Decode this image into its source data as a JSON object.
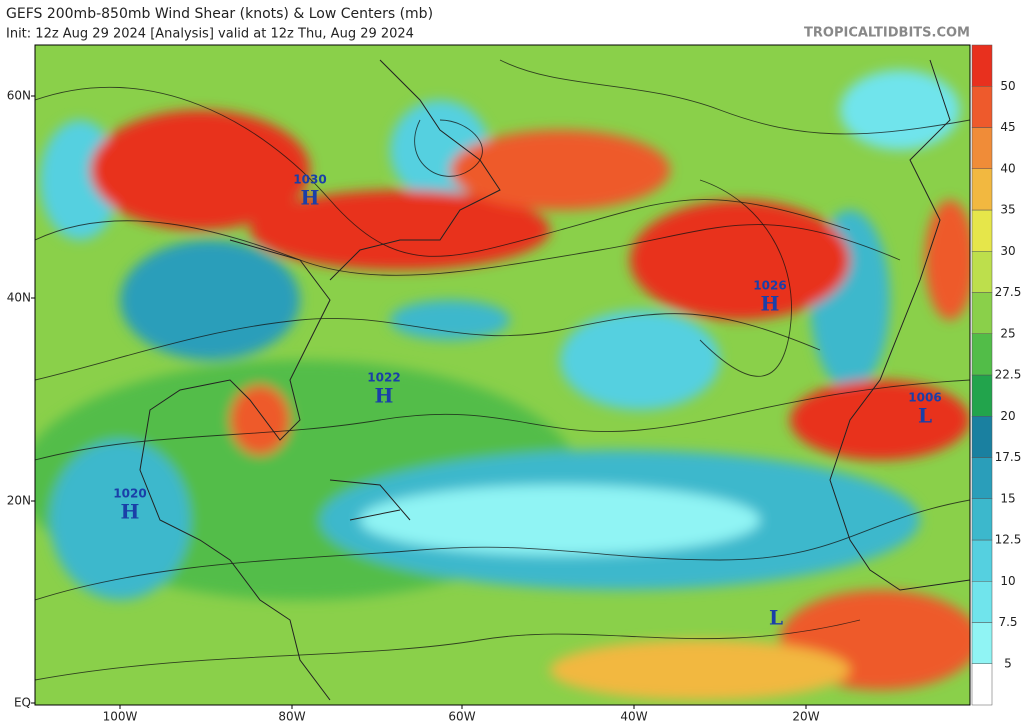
{
  "header": {
    "title": "GEFS 200mb-850mb Wind Shear (knots) & Low Centers (mb)",
    "subtitle": "Init: 12z Aug 29 2024   [Analysis]   valid at 12z Thu, Aug 29 2024",
    "credit": "TROPICALTIDBITS.COM"
  },
  "map": {
    "lat_labels": [
      "60N",
      "40N",
      "20N",
      "EQ"
    ],
    "lon_labels": [
      "100W",
      "80W",
      "60W",
      "40W",
      "20W"
    ],
    "centers": [
      {
        "pressure": "1030",
        "symbol": "H"
      },
      {
        "pressure": "1026",
        "symbol": "H"
      },
      {
        "pressure": "1022",
        "symbol": "H"
      },
      {
        "pressure": "1020",
        "symbol": "H"
      },
      {
        "pressure": "1006",
        "symbol": "L"
      },
      {
        "symbol": "L"
      }
    ]
  },
  "colorbar": {
    "levels": [
      5,
      7.5,
      10,
      12.5,
      15,
      17.5,
      20,
      22.5,
      25,
      27.5,
      30,
      35,
      40,
      45,
      50
    ],
    "colors": [
      "#ffffff",
      "#90f4f4",
      "#70e4ec",
      "#55d0e0",
      "#3cb8cc",
      "#2a9eba",
      "#1a80a0",
      "#22a44c",
      "#52bd48",
      "#8ad04a",
      "#bddf4c",
      "#e6e64a",
      "#f2b840",
      "#f08c38",
      "#ee5a2c",
      "#e8301e"
    ]
  }
}
